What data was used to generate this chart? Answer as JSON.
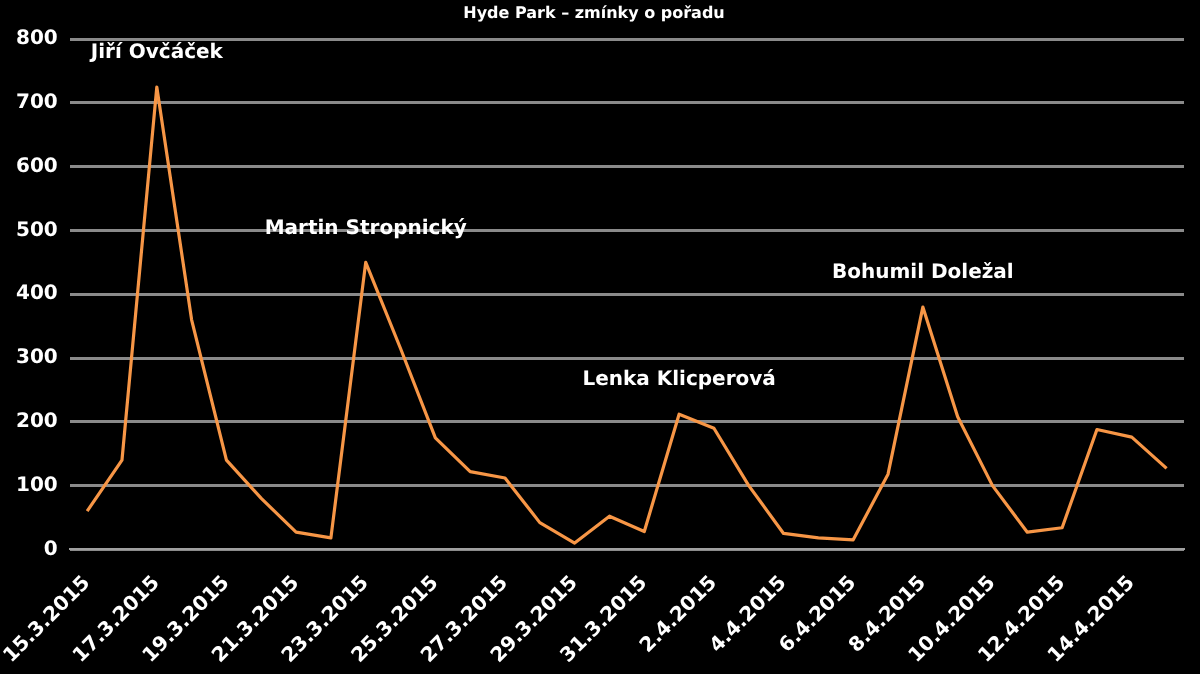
{
  "chart_data": {
    "type": "line",
    "title": "Hyde Park – zmínky o pořadu",
    "categories": [
      "15.3.2015",
      null,
      "17.3.2015",
      null,
      "19.3.2015",
      null,
      "21.3.2015",
      null,
      "23.3.2015",
      null,
      "25.3.2015",
      null,
      "27.3.2015",
      null,
      "29.3.2015",
      null,
      "31.3.2015",
      null,
      "2.4.2015",
      null,
      "4.4.2015",
      null,
      "6.4.2015",
      null,
      "8.4.2015",
      null,
      "10.4.2015",
      null,
      "12.4.2015",
      null,
      "14.4.2015",
      null
    ],
    "series": [
      {
        "color": "#f79646",
        "values": [
          60,
          140,
          725,
          360,
          140,
          80,
          27,
          18,
          450,
          315,
          175,
          122,
          112,
          42,
          10,
          52,
          28,
          212,
          190,
          100,
          25,
          18,
          15,
          118,
          380,
          208,
          100,
          27,
          34,
          188,
          176,
          127
        ]
      }
    ],
    "ylim": [
      0,
      800
    ],
    "yticks": [
      0,
      100,
      200,
      300,
      400,
      500,
      600,
      700,
      800
    ],
    "grid": "y",
    "legend": false,
    "marker": "none",
    "line_style": "solid",
    "annotations": [
      "Jiří Ovčáček",
      "Martin Stropnický",
      "Lenka Klicperová",
      "Bohumil Doležal"
    ]
  }
}
